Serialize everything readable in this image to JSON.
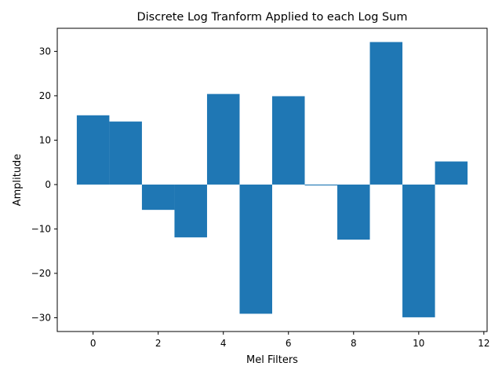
{
  "chart_data": {
    "type": "bar",
    "title": "Discrete Log Tranform Applied to each Log Sum",
    "xlabel": "Mel Filters",
    "ylabel": "Amplitude",
    "x": [
      0,
      1,
      2,
      3,
      4,
      5,
      6,
      7,
      8,
      9,
      10,
      11
    ],
    "values": [
      15.6,
      14.2,
      -5.7,
      -11.9,
      20.4,
      -29.1,
      19.9,
      -0.2,
      -12.4,
      32.1,
      -29.9,
      5.2
    ],
    "bar_width": 1.0,
    "xlim": [
      -1.1,
      12.1
    ],
    "ylim": [
      -33.1,
      35.2
    ],
    "xticks": [
      0,
      2,
      4,
      6,
      8,
      10,
      12
    ],
    "yticks": [
      -30,
      -20,
      -10,
      0,
      10,
      20,
      30
    ],
    "xtick_labels": [
      "0",
      "2",
      "4",
      "6",
      "8",
      "10",
      "12"
    ],
    "ytick_labels": [
      "−30",
      "−20",
      "−10",
      "0",
      "10",
      "20",
      "30"
    ],
    "bar_color": "#1f77b4",
    "grid": false,
    "legend": "none"
  }
}
